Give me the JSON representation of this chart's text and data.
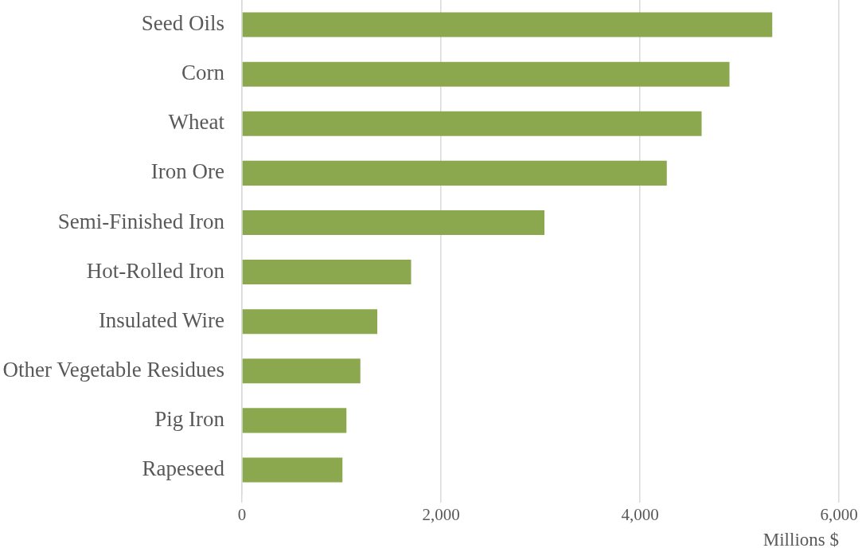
{
  "chart_data": {
    "type": "bar",
    "orientation": "horizontal",
    "xlabel": "Millions $",
    "categories": [
      "Seed Oils",
      "Corn",
      "Wheat",
      "Iron Ore",
      "Semi-Finished Iron",
      "Hot-Rolled Iron",
      "Insulated Wire",
      "Other Vegetable Residues",
      "Pig Iron",
      "Rapeseed"
    ],
    "values": [
      5330,
      4900,
      4620,
      4270,
      3040,
      1700,
      1360,
      1190,
      1050,
      1010
    ],
    "color": "#8ca84f",
    "xlim": [
      0,
      6000
    ],
    "xticks": [
      0,
      {
        "value": 2000,
        "label": "2,000"
      },
      {
        "value": 4000,
        "label": "4,000"
      },
      {
        "value": 6000,
        "label": "6,000"
      }
    ],
    "grid": "x"
  }
}
